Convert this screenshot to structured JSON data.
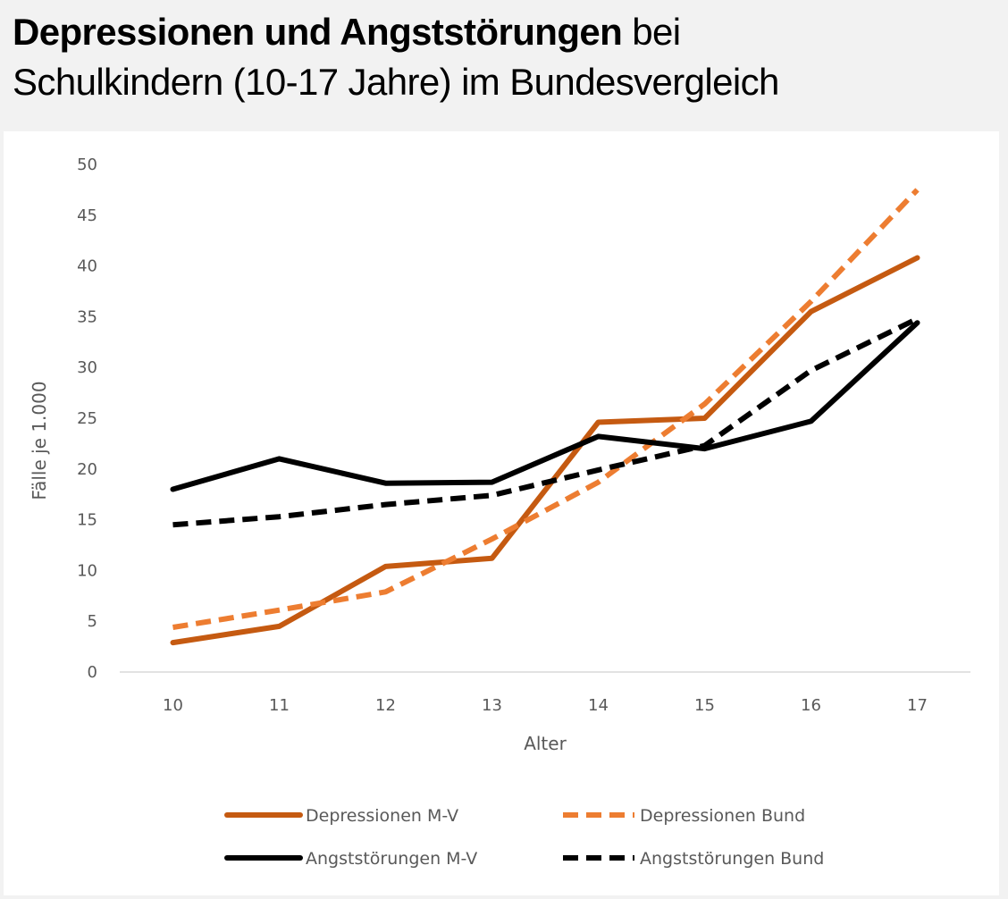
{
  "title": {
    "bold": "Depressionen und Angststörungen",
    "rest_line1": " bei",
    "line2": "Schulkindern (10-17 Jahre) im Bundesvergleich"
  },
  "chart_data": {
    "type": "line",
    "title": "Depressionen und Angststörungen bei Schulkindern (10-17 Jahre) im Bundesvergleich",
    "xlabel": "Alter",
    "ylabel": "Fälle je 1.000",
    "x": [
      10,
      11,
      12,
      13,
      14,
      15,
      16,
      17
    ],
    "x_tick_labels": [
      "10",
      "11",
      "12",
      "13",
      "14",
      "15",
      "16",
      "17"
    ],
    "ylim": [
      0,
      50
    ],
    "y_ticks": [
      0,
      5,
      10,
      15,
      20,
      25,
      30,
      35,
      40,
      45,
      50
    ],
    "y_tick_labels": [
      "0",
      "5",
      "10",
      "15",
      "20",
      "25",
      "30",
      "35",
      "40",
      "45",
      "50"
    ],
    "grid": false,
    "legend_position": "bottom",
    "series": [
      {
        "name": "Depressionen M-V",
        "color": "#c55a11",
        "style": "solid",
        "values": [
          2.9,
          4.5,
          10.4,
          11.2,
          24.6,
          25.0,
          35.5,
          40.8
        ]
      },
      {
        "name": "Depressionen Bund",
        "color": "#ed7d31",
        "style": "dashed",
        "values": [
          4.4,
          6.1,
          7.9,
          13.1,
          18.7,
          26.4,
          36.5,
          47.5
        ]
      },
      {
        "name": "Angststörungen M-V",
        "color": "#000000",
        "style": "solid",
        "values": [
          18.0,
          21.0,
          18.6,
          18.7,
          23.2,
          22.0,
          24.7,
          34.4
        ]
      },
      {
        "name": "Angststörungen Bund",
        "color": "#000000",
        "style": "dashed",
        "values": [
          14.5,
          15.3,
          16.5,
          17.4,
          19.9,
          22.3,
          29.7,
          34.8
        ]
      }
    ]
  }
}
